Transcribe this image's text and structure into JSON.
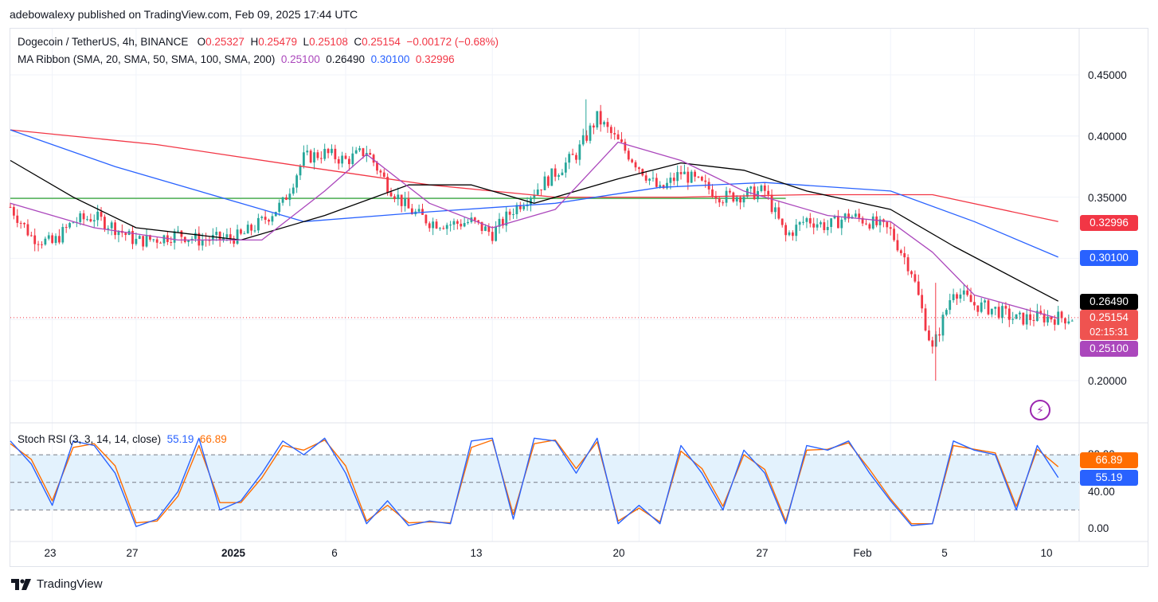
{
  "header": {
    "published": "adebowalexy published on TradingView.com, Feb 09, 2025 17:44 UTC",
    "symbol": "Dogecoin / TetherUS, 4h, BINANCE",
    "o_label": "O",
    "o_value": "0.25327",
    "h_label": "H",
    "h_value": "0.25479",
    "l_label": "L",
    "l_value": "0.25108",
    "c_label": "C",
    "c_value": "0.25154",
    "change": "−0.00172 (−0.68%)",
    "ribbon_label": "MA Ribbon (SMA, 20, SMA, 50, SMA, 100, SMA, 200)",
    "ribbon_values": [
      "0.25100",
      "0.26490",
      "0.30100",
      "0.32996"
    ]
  },
  "indicator": {
    "label": "Stoch RSI (3, 3, 14, 14, close)",
    "k_value": "55.19",
    "d_value": "66.89"
  },
  "price_tags": {
    "sma200": "0.32996",
    "sma100": "0.30100",
    "sma50": "0.26490",
    "last_price": "0.25154",
    "countdown": "02:15:31",
    "sma20": "0.25100",
    "stoch_d": "66.89",
    "stoch_k": "55.19"
  },
  "colors": {
    "up": "#26a69a",
    "down": "#f23645",
    "sma20": "#ab47bc",
    "sma50": "#000000",
    "sma100": "#2962ff",
    "sma200": "#f23645",
    "hline": "#4caf50",
    "stoch_k": "#2962ff",
    "stoch_d": "#ff6d00",
    "band": "#e3f2fd"
  },
  "brand": "TradingView",
  "icons": [
    "tradingview-logo-icon",
    "lightning-icon"
  ],
  "chart_data": [
    {
      "type": "candlestick",
      "title": "Dogecoin / TetherUS, 4h, BINANCE",
      "x_ticks": [
        "23",
        "27",
        "2025",
        "6",
        "13",
        "20",
        "27",
        "Feb",
        "5",
        "10"
      ],
      "x_range": [
        "2024-12-21",
        "2025-02-10"
      ],
      "y_ticks": [
        "0.45000",
        "0.40000",
        "0.35000",
        "0.20000"
      ],
      "ylim": [
        0.18,
        0.46
      ],
      "horizontal_line": 0.349,
      "last_price": 0.25154,
      "close_path": [
        [
          "2024-12-21",
          0.342
        ],
        [
          "2024-12-22",
          0.318
        ],
        [
          "2024-12-23",
          0.312
        ],
        [
          "2024-12-24",
          0.33
        ],
        [
          "2024-12-25",
          0.334
        ],
        [
          "2024-12-26",
          0.325
        ],
        [
          "2024-12-27",
          0.314
        ],
        [
          "2024-12-28",
          0.316
        ],
        [
          "2024-12-29",
          0.32
        ],
        [
          "2024-12-30",
          0.315
        ],
        [
          "2024-12-31",
          0.316
        ],
        [
          "2025-01-01",
          0.318
        ],
        [
          "2025-01-02",
          0.33
        ],
        [
          "2025-01-03",
          0.345
        ],
        [
          "2025-01-04",
          0.382
        ],
        [
          "2025-01-05",
          0.386
        ],
        [
          "2025-01-06",
          0.38
        ],
        [
          "2025-01-07",
          0.388
        ],
        [
          "2025-01-08",
          0.36
        ],
        [
          "2025-01-09",
          0.34
        ],
        [
          "2025-01-10",
          0.33
        ],
        [
          "2025-01-11",
          0.328
        ],
        [
          "2025-01-12",
          0.33
        ],
        [
          "2025-01-13",
          0.32
        ],
        [
          "2025-01-14",
          0.34
        ],
        [
          "2025-01-15",
          0.355
        ],
        [
          "2025-01-16",
          0.37
        ],
        [
          "2025-01-17",
          0.385
        ],
        [
          "2025-01-18",
          0.415
        ],
        [
          "2025-01-19",
          0.395
        ],
        [
          "2025-01-20",
          0.375
        ],
        [
          "2025-01-21",
          0.355
        ],
        [
          "2025-01-22",
          0.37
        ],
        [
          "2025-01-23",
          0.36
        ],
        [
          "2025-01-24",
          0.35
        ],
        [
          "2025-01-25",
          0.352
        ],
        [
          "2025-01-26",
          0.355
        ],
        [
          "2025-01-27",
          0.318
        ],
        [
          "2025-01-28",
          0.332
        ],
        [
          "2025-01-29",
          0.326
        ],
        [
          "2025-01-30",
          0.335
        ],
        [
          "2025-01-31",
          0.33
        ],
        [
          "2025-02-01",
          0.322
        ],
        [
          "2025-02-02",
          0.29
        ],
        [
          "2025-02-03",
          0.225
        ],
        [
          "2025-02-04",
          0.275
        ],
        [
          "2025-02-05",
          0.262
        ],
        [
          "2025-02-06",
          0.258
        ],
        [
          "2025-02-07",
          0.25
        ],
        [
          "2025-02-08",
          0.252
        ],
        [
          "2025-02-09",
          0.2515
        ]
      ],
      "sma20_path": [
        [
          "2024-12-21",
          0.345
        ],
        [
          "2024-12-25",
          0.325
        ],
        [
          "2024-12-29",
          0.315
        ],
        [
          "2025-01-02",
          0.315
        ],
        [
          "2025-01-05",
          0.355
        ],
        [
          "2025-01-07",
          0.385
        ],
        [
          "2025-01-10",
          0.345
        ],
        [
          "2025-01-13",
          0.325
        ],
        [
          "2025-01-16",
          0.34
        ],
        [
          "2025-01-19",
          0.395
        ],
        [
          "2025-01-22",
          0.38
        ],
        [
          "2025-01-25",
          0.355
        ],
        [
          "2025-01-29",
          0.335
        ],
        [
          "2025-02-01",
          0.33
        ],
        [
          "2025-02-03",
          0.305
        ],
        [
          "2025-02-05",
          0.27
        ],
        [
          "2025-02-09",
          0.251
        ]
      ],
      "sma50_path": [
        [
          "2024-12-21",
          0.38
        ],
        [
          "2024-12-24",
          0.35
        ],
        [
          "2024-12-27",
          0.325
        ],
        [
          "2025-01-01",
          0.315
        ],
        [
          "2025-01-05",
          0.335
        ],
        [
          "2025-01-09",
          0.36
        ],
        [
          "2025-01-12",
          0.36
        ],
        [
          "2025-01-15",
          0.345
        ],
        [
          "2025-01-19",
          0.365
        ],
        [
          "2025-01-22",
          0.378
        ],
        [
          "2025-01-25",
          0.372
        ],
        [
          "2025-01-28",
          0.355
        ],
        [
          "2025-02-01",
          0.34
        ],
        [
          "2025-02-04",
          0.31
        ],
        [
          "2025-02-09",
          0.265
        ]
      ],
      "sma100_path": [
        [
          "2024-12-21",
          0.405
        ],
        [
          "2024-12-26",
          0.375
        ],
        [
          "2025-01-01",
          0.345
        ],
        [
          "2025-01-04",
          0.33
        ],
        [
          "2025-01-10",
          0.338
        ],
        [
          "2025-01-16",
          0.345
        ],
        [
          "2025-01-21",
          0.358
        ],
        [
          "2025-01-26",
          0.362
        ],
        [
          "2025-02-01",
          0.355
        ],
        [
          "2025-02-05",
          0.33
        ],
        [
          "2025-02-09",
          0.301
        ]
      ],
      "sma200_path": [
        [
          "2024-12-21",
          0.405
        ],
        [
          "2024-12-28",
          0.393
        ],
        [
          "2025-01-04",
          0.375
        ],
        [
          "2025-01-10",
          0.36
        ],
        [
          "2025-01-16",
          0.35
        ],
        [
          "2025-01-22",
          0.35
        ],
        [
          "2025-01-28",
          0.352
        ],
        [
          "2025-02-03",
          0.352
        ],
        [
          "2025-02-09",
          0.33
        ]
      ],
      "series": [
        {
          "name": "SMA 20",
          "last": 0.251
        },
        {
          "name": "SMA 50",
          "last": 0.2649
        },
        {
          "name": "SMA 100",
          "last": 0.301
        },
        {
          "name": "SMA 200",
          "last": 0.32996
        }
      ]
    },
    {
      "type": "line",
      "title": "Stoch RSI (3, 3, 14, 14, close)",
      "y_ticks": [
        "80.00",
        "40.00",
        "0.00"
      ],
      "ylim": [
        0,
        100
      ],
      "bands": [
        20,
        50,
        80
      ],
      "k_path": [
        [
          "2024-12-21",
          95
        ],
        [
          "2024-12-22",
          70
        ],
        [
          "2024-12-23",
          25
        ],
        [
          "2024-12-24",
          95
        ],
        [
          "2024-12-25",
          90
        ],
        [
          "2024-12-26",
          60
        ],
        [
          "2024-12-27",
          2
        ],
        [
          "2024-12-28",
          10
        ],
        [
          "2024-12-29",
          40
        ],
        [
          "2024-12-30",
          98
        ],
        [
          "2024-12-31",
          20
        ],
        [
          "2025-01-01",
          30
        ],
        [
          "2025-01-02",
          60
        ],
        [
          "2025-01-03",
          95
        ],
        [
          "2025-01-04",
          80
        ],
        [
          "2025-01-05",
          98
        ],
        [
          "2025-01-06",
          60
        ],
        [
          "2025-01-07",
          5
        ],
        [
          "2025-01-08",
          30
        ],
        [
          "2025-01-09",
          3
        ],
        [
          "2025-01-10",
          8
        ],
        [
          "2025-01-11",
          5
        ],
        [
          "2025-01-12",
          95
        ],
        [
          "2025-01-13",
          98
        ],
        [
          "2025-01-14",
          10
        ],
        [
          "2025-01-15",
          98
        ],
        [
          "2025-01-16",
          95
        ],
        [
          "2025-01-17",
          60
        ],
        [
          "2025-01-18",
          98
        ],
        [
          "2025-01-19",
          5
        ],
        [
          "2025-01-20",
          25
        ],
        [
          "2025-01-21",
          5
        ],
        [
          "2025-01-22",
          90
        ],
        [
          "2025-01-23",
          60
        ],
        [
          "2025-01-24",
          20
        ],
        [
          "2025-01-25",
          85
        ],
        [
          "2025-01-26",
          60
        ],
        [
          "2025-01-27",
          5
        ],
        [
          "2025-01-28",
          90
        ],
        [
          "2025-01-29",
          85
        ],
        [
          "2025-01-30",
          95
        ],
        [
          "2025-01-31",
          60
        ],
        [
          "2025-02-01",
          30
        ],
        [
          "2025-02-02",
          3
        ],
        [
          "2025-02-03",
          5
        ],
        [
          "2025-02-04",
          95
        ],
        [
          "2025-02-05",
          85
        ],
        [
          "2025-02-06",
          80
        ],
        [
          "2025-02-07",
          20
        ],
        [
          "2025-02-08",
          90
        ],
        [
          "2025-02-09",
          55.19
        ]
      ],
      "d_path": [
        [
          "2024-12-21",
          92
        ],
        [
          "2024-12-22",
          75
        ],
        [
          "2024-12-23",
          30
        ],
        [
          "2024-12-24",
          88
        ],
        [
          "2024-12-25",
          92
        ],
        [
          "2024-12-26",
          68
        ],
        [
          "2024-12-27",
          6
        ],
        [
          "2024-12-28",
          8
        ],
        [
          "2024-12-29",
          35
        ],
        [
          "2024-12-30",
          90
        ],
        [
          "2024-12-31",
          28
        ],
        [
          "2025-01-01",
          28
        ],
        [
          "2025-01-02",
          55
        ],
        [
          "2025-01-03",
          90
        ],
        [
          "2025-01-04",
          85
        ],
        [
          "2025-01-05",
          96
        ],
        [
          "2025-01-06",
          68
        ],
        [
          "2025-01-07",
          8
        ],
        [
          "2025-01-08",
          25
        ],
        [
          "2025-01-09",
          6
        ],
        [
          "2025-01-10",
          7
        ],
        [
          "2025-01-11",
          6
        ],
        [
          "2025-01-12",
          88
        ],
        [
          "2025-01-13",
          96
        ],
        [
          "2025-01-14",
          15
        ],
        [
          "2025-01-15",
          92
        ],
        [
          "2025-01-16",
          96
        ],
        [
          "2025-01-17",
          65
        ],
        [
          "2025-01-18",
          94
        ],
        [
          "2025-01-19",
          8
        ],
        [
          "2025-01-20",
          22
        ],
        [
          "2025-01-21",
          7
        ],
        [
          "2025-01-22",
          84
        ],
        [
          "2025-01-23",
          65
        ],
        [
          "2025-01-24",
          24
        ],
        [
          "2025-01-25",
          80
        ],
        [
          "2025-01-26",
          64
        ],
        [
          "2025-01-27",
          8
        ],
        [
          "2025-01-28",
          85
        ],
        [
          "2025-01-29",
          86
        ],
        [
          "2025-01-30",
          93
        ],
        [
          "2025-01-31",
          64
        ],
        [
          "2025-02-01",
          32
        ],
        [
          "2025-02-02",
          5
        ],
        [
          "2025-02-03",
          5
        ],
        [
          "2025-02-04",
          90
        ],
        [
          "2025-02-05",
          86
        ],
        [
          "2025-02-06",
          82
        ],
        [
          "2025-02-07",
          24
        ],
        [
          "2025-02-08",
          86
        ],
        [
          "2025-02-09",
          66.89
        ]
      ],
      "series": [
        {
          "name": "K",
          "last": 55.19
        },
        {
          "name": "D",
          "last": 66.89
        }
      ]
    }
  ]
}
